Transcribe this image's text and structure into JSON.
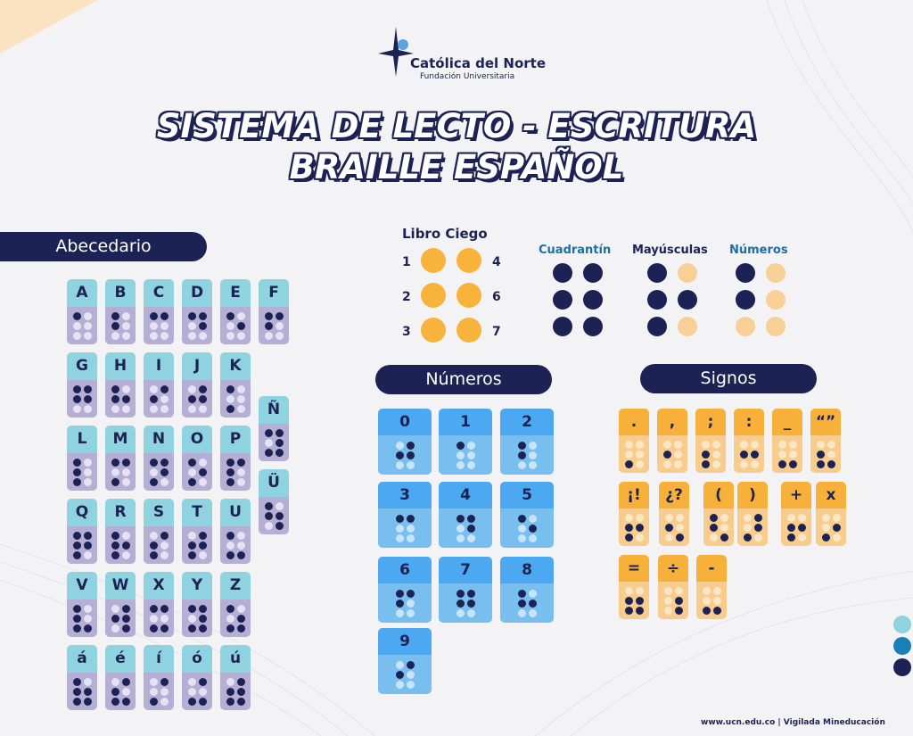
{
  "logo": {
    "name": "Católica del Norte",
    "subtitle": "Fundación Universitaria"
  },
  "title": {
    "line1": "SISTEMA DE LECTO - ESCRITURA",
    "line2": "BRAILLE ESPAÑOL"
  },
  "sections": {
    "alphabet": "Abecedario",
    "numbers": "Números",
    "signs": "Signos"
  },
  "colors": {
    "navy": "#1c2354",
    "letter_head": "#8fd3e0",
    "letter_body": "#b5afd6",
    "number_head": "#4ca8f0",
    "number_body": "#78bff0",
    "sign_head": "#f7b13a",
    "sign_body": "#f8cc8c",
    "orange": "#f7b33c",
    "peach": "#f8cf96"
  },
  "libro_ciego": {
    "title": "Libro Ciego",
    "left_numbers": [
      "1",
      "2",
      "3"
    ],
    "right_numbers": [
      "4",
      "6",
      "7"
    ]
  },
  "indicators": [
    {
      "label": "Cuadrantín",
      "dots": [
        1,
        1,
        1,
        1,
        1,
        1
      ],
      "color": "#1a6fa3"
    },
    {
      "label": "Mayúsculas",
      "dots": [
        1,
        0,
        1,
        1,
        1,
        0
      ],
      "color": "#1c2354"
    },
    {
      "label": "Números",
      "dots": [
        1,
        0,
        1,
        0,
        0,
        0
      ],
      "color": "#1a6fa3"
    }
  ],
  "letters": [
    {
      "char": "A",
      "dots": [
        1,
        0,
        0,
        0,
        0,
        0
      ]
    },
    {
      "char": "B",
      "dots": [
        1,
        0,
        1,
        0,
        0,
        0
      ]
    },
    {
      "char": "C",
      "dots": [
        1,
        1,
        0,
        0,
        0,
        0
      ]
    },
    {
      "char": "D",
      "dots": [
        1,
        1,
        0,
        1,
        0,
        0
      ]
    },
    {
      "char": "E",
      "dots": [
        1,
        0,
        0,
        1,
        0,
        0
      ]
    },
    {
      "char": "F",
      "dots": [
        1,
        1,
        1,
        0,
        0,
        0
      ]
    },
    {
      "char": "G",
      "dots": [
        1,
        1,
        1,
        1,
        0,
        0
      ]
    },
    {
      "char": "H",
      "dots": [
        1,
        0,
        1,
        1,
        0,
        0
      ]
    },
    {
      "char": "I",
      "dots": [
        0,
        1,
        1,
        0,
        0,
        0
      ]
    },
    {
      "char": "J",
      "dots": [
        0,
        1,
        1,
        1,
        0,
        0
      ]
    },
    {
      "char": "K",
      "dots": [
        1,
        0,
        0,
        0,
        1,
        0
      ]
    },
    {
      "char": "Ñ",
      "dots": [
        1,
        1,
        0,
        1,
        1,
        1
      ]
    },
    {
      "char": "L",
      "dots": [
        1,
        0,
        1,
        0,
        1,
        0
      ]
    },
    {
      "char": "M",
      "dots": [
        1,
        1,
        0,
        0,
        1,
        0
      ]
    },
    {
      "char": "N",
      "dots": [
        1,
        1,
        0,
        1,
        1,
        0
      ]
    },
    {
      "char": "O",
      "dots": [
        1,
        0,
        0,
        1,
        1,
        0
      ]
    },
    {
      "char": "P",
      "dots": [
        1,
        1,
        1,
        0,
        1,
        0
      ]
    },
    {
      "char": "Ü",
      "dots": [
        1,
        0,
        1,
        1,
        0,
        1
      ]
    },
    {
      "char": "Q",
      "dots": [
        1,
        1,
        1,
        1,
        1,
        0
      ]
    },
    {
      "char": "R",
      "dots": [
        1,
        0,
        1,
        1,
        1,
        0
      ]
    },
    {
      "char": "S",
      "dots": [
        0,
        1,
        1,
        0,
        1,
        0
      ]
    },
    {
      "char": "T",
      "dots": [
        0,
        1,
        1,
        1,
        1,
        0
      ]
    },
    {
      "char": "U",
      "dots": [
        1,
        0,
        0,
        0,
        1,
        1
      ]
    },
    {
      "char": "V",
      "dots": [
        1,
        0,
        1,
        0,
        1,
        1
      ]
    },
    {
      "char": "W",
      "dots": [
        0,
        1,
        1,
        1,
        0,
        1
      ]
    },
    {
      "char": "X",
      "dots": [
        1,
        1,
        0,
        0,
        1,
        1
      ]
    },
    {
      "char": "Y",
      "dots": [
        1,
        1,
        0,
        1,
        1,
        1
      ]
    },
    {
      "char": "Z",
      "dots": [
        1,
        0,
        0,
        1,
        1,
        1
      ]
    },
    {
      "char": "á",
      "dots": [
        1,
        0,
        1,
        1,
        1,
        1
      ]
    },
    {
      "char": "é",
      "dots": [
        0,
        1,
        1,
        0,
        1,
        1
      ]
    },
    {
      "char": "í",
      "dots": [
        0,
        1,
        0,
        0,
        1,
        0
      ]
    },
    {
      "char": "ó",
      "dots": [
        0,
        1,
        0,
        0,
        1,
        1
      ]
    },
    {
      "char": "ú",
      "dots": [
        0,
        1,
        1,
        1,
        1,
        1
      ]
    }
  ],
  "numbers": [
    {
      "char": "0",
      "dots": [
        0,
        1,
        1,
        1,
        0,
        0
      ]
    },
    {
      "char": "1",
      "dots": [
        1,
        0,
        0,
        0,
        0,
        0
      ]
    },
    {
      "char": "2",
      "dots": [
        1,
        0,
        1,
        0,
        0,
        0
      ]
    },
    {
      "char": "3",
      "dots": [
        1,
        1,
        0,
        0,
        0,
        0
      ]
    },
    {
      "char": "4",
      "dots": [
        1,
        1,
        0,
        1,
        0,
        0
      ]
    },
    {
      "char": "5",
      "dots": [
        1,
        0,
        0,
        1,
        0,
        0
      ]
    },
    {
      "char": "6",
      "dots": [
        1,
        1,
        1,
        0,
        0,
        0
      ]
    },
    {
      "char": "7",
      "dots": [
        1,
        1,
        1,
        1,
        0,
        0
      ]
    },
    {
      "char": "8",
      "dots": [
        1,
        0,
        1,
        1,
        0,
        0
      ]
    },
    {
      "char": "9",
      "dots": [
        0,
        1,
        1,
        0,
        0,
        0
      ]
    }
  ],
  "signs": [
    {
      "char": ".",
      "dots": [
        0,
        0,
        0,
        0,
        1,
        0
      ]
    },
    {
      "char": ",",
      "dots": [
        0,
        0,
        1,
        0,
        0,
        0
      ]
    },
    {
      "char": ";",
      "dots": [
        0,
        0,
        1,
        0,
        1,
        0
      ]
    },
    {
      "char": ":",
      "dots": [
        0,
        0,
        1,
        1,
        0,
        0
      ]
    },
    {
      "char": "_",
      "dots": [
        0,
        0,
        0,
        0,
        1,
        1
      ]
    },
    {
      "char": "“”",
      "dots": [
        0,
        0,
        1,
        0,
        1,
        1
      ]
    },
    {
      "char": "¡!",
      "dots": [
        0,
        0,
        1,
        1,
        1,
        0
      ]
    },
    {
      "char": "¿?",
      "dots": [
        0,
        0,
        1,
        0,
        0,
        1
      ]
    },
    {
      "char": "(",
      "dots": [
        1,
        0,
        1,
        0,
        0,
        1
      ]
    },
    {
      "char": ")",
      "dots": [
        0,
        1,
        0,
        1,
        1,
        0
      ]
    },
    {
      "char": "+",
      "dots": [
        0,
        0,
        1,
        1,
        1,
        0
      ]
    },
    {
      "char": "x",
      "dots": [
        0,
        0,
        0,
        1,
        1,
        0
      ]
    },
    {
      "char": "=",
      "dots": [
        0,
        0,
        1,
        1,
        1,
        1
      ]
    },
    {
      "char": "÷",
      "dots": [
        0,
        0,
        0,
        1,
        0,
        1
      ]
    },
    {
      "char": "-",
      "dots": [
        0,
        0,
        0,
        0,
        1,
        1
      ]
    }
  ],
  "footer": "www.ucn.edu.co | Vigilada Mineducación"
}
